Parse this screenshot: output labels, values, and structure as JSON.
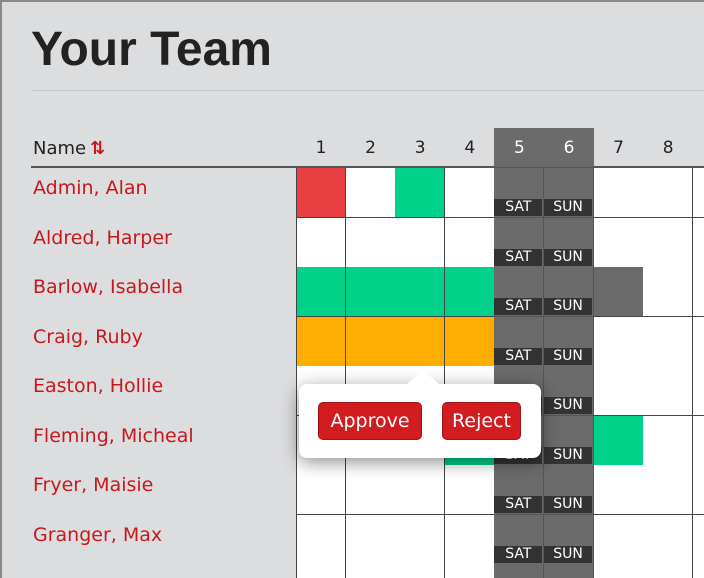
{
  "title": "Your Team",
  "name_header": "Name",
  "sort_icon": "sort-arrows-icon",
  "days": [
    "1",
    "2",
    "3",
    "4",
    "5",
    "6",
    "7",
    "8",
    ""
  ],
  "weekend_days": {
    "4": "SAT",
    "5": "SUN"
  },
  "colors": {
    "approved": "#00d28a",
    "pending": "#ffad00",
    "rejected": "#e84040",
    "blocked": "#6b6b6b",
    "accent": "#c8181c"
  },
  "rows": [
    {
      "name": "Admin, Alan",
      "cells": {
        "0": "rejected",
        "2": "approved"
      }
    },
    {
      "name": "Aldred, Harper",
      "cells": {}
    },
    {
      "name": "Barlow, Isabella",
      "cells": {
        "0": "approved",
        "1": "approved",
        "2": "approved",
        "3": "approved",
        "6": "blocked"
      }
    },
    {
      "name": "Craig, Ruby",
      "cells": {
        "0": "pending",
        "1": "pending",
        "2": "pending",
        "3": "pending"
      }
    },
    {
      "name": "Easton, Hollie",
      "cells": {}
    },
    {
      "name": "Fleming, Micheal",
      "cells": {
        "3": "approved",
        "6": "approved"
      }
    },
    {
      "name": "Fryer, Maisie",
      "cells": {}
    },
    {
      "name": "Granger, Max",
      "cells": {}
    },
    {
      "name": "",
      "cells": {}
    }
  ],
  "popup": {
    "approve": "Approve",
    "reject": "Reject"
  }
}
